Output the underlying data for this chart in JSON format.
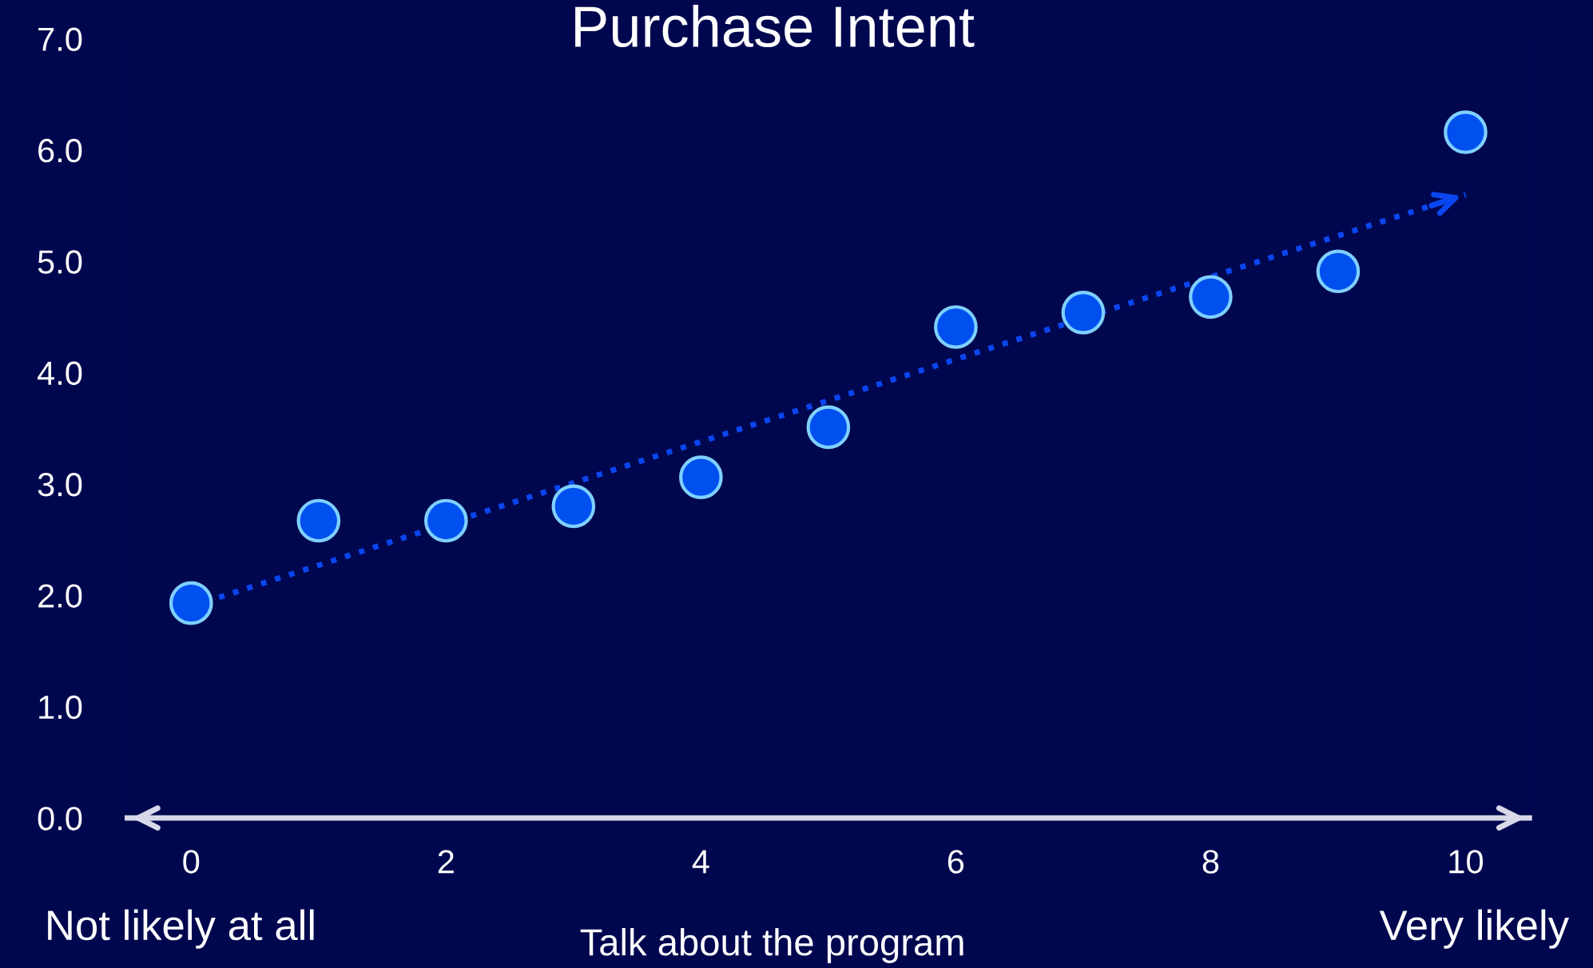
{
  "chart_data": {
    "type": "scatter",
    "title": "Purchase Intent",
    "xlabel": "Talk about the program",
    "x": [
      0,
      1,
      2,
      3,
      4,
      5,
      6,
      7,
      8,
      9,
      10
    ],
    "series": [
      {
        "color": "#0050f0",
        "marker": "circle",
        "values": [
          1.93,
          2.67,
          2.67,
          2.8,
          3.06,
          3.51,
          4.41,
          4.54,
          4.68,
          4.91,
          6.16
        ]
      },
      {
        "type": "line",
        "color": "#0a46f0",
        "x": [
          0,
          10
        ],
        "values": [
          1.9,
          5.6
        ],
        "line_style": "dotted"
      }
    ],
    "xlim": [
      -0.5,
      10.5
    ],
    "xticks": [
      0,
      2,
      4,
      6,
      8,
      10
    ],
    "ylim": [
      0,
      7
    ],
    "yticks": [
      {
        "value": 0,
        "label": "0.0"
      },
      {
        "value": 1,
        "label": "1.0"
      },
      {
        "value": 2,
        "label": "2.0"
      },
      {
        "value": 3,
        "label": "3.0"
      },
      {
        "value": 4,
        "label": "4.0"
      },
      {
        "value": 5,
        "label": "5.0"
      },
      {
        "value": 6,
        "label": "6.0"
      },
      {
        "value": 7,
        "label": "7.0"
      }
    ],
    "annotations": [
      "Not likely at all",
      "Very likely"
    ],
    "grid": false,
    "legend": false
  }
}
